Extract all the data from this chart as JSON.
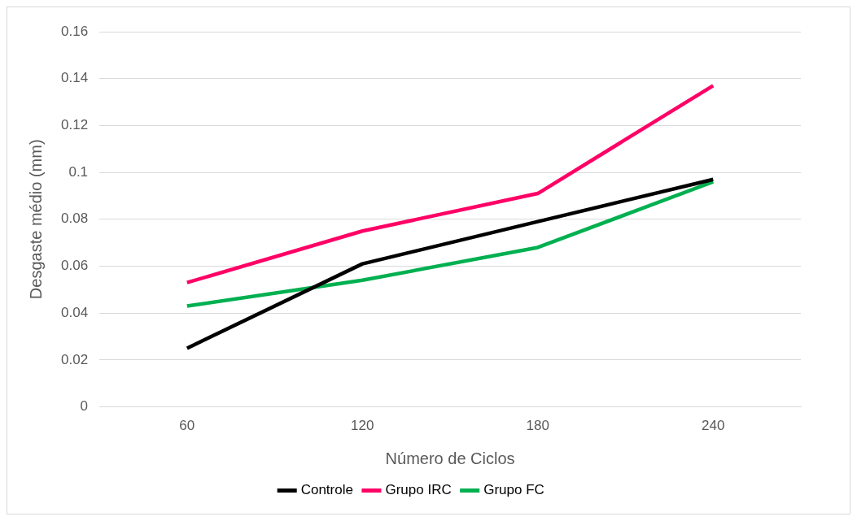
{
  "chart_data": {
    "type": "line",
    "xlabel": "Número de Ciclos",
    "ylabel": "Desgaste médio (mm)",
    "categories": [
      "60",
      "120",
      "180",
      "240"
    ],
    "series": [
      {
        "name": "Controle",
        "color": "#000000",
        "values": [
          0.025,
          0.061,
          0.079,
          0.097
        ]
      },
      {
        "name": "Grupo IRC",
        "color": "#ff0066",
        "values": [
          0.053,
          0.075,
          0.091,
          0.137
        ]
      },
      {
        "name": "Grupo FC",
        "color": "#00b050",
        "values": [
          0.043,
          0.054,
          0.068,
          0.096
        ]
      }
    ],
    "ylim": [
      0,
      0.16
    ],
    "yticks": [
      0,
      0.02,
      0.04,
      0.06,
      0.08,
      0.1,
      0.12,
      0.14,
      0.16
    ],
    "grid": "y",
    "legend": "bottom",
    "marker": "none",
    "line_style": "solid"
  }
}
